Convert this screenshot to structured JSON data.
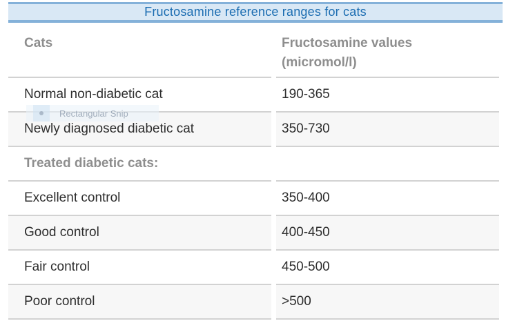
{
  "banner": {
    "title": "Fructosamine reference ranges for cats"
  },
  "table": {
    "header": {
      "col1": "Cats",
      "col2": "Fructosamine values (micromol/l)"
    },
    "rows": [
      {
        "label": "Normal non-diabetic cat",
        "value": "190-365"
      },
      {
        "label": "Newly diagnosed diabetic cat",
        "value": "350-730"
      },
      {
        "label": "Treated diabetic cats:",
        "value": ""
      },
      {
        "label": "Excellent control",
        "value": "350-400"
      },
      {
        "label": "Good control",
        "value": "400-450"
      },
      {
        "label": "Fair control",
        "value": "450-500"
      },
      {
        "label": "Poor control",
        "value": ">500"
      }
    ]
  },
  "snip_tool": {
    "menu_item": "Rectangular Snip"
  },
  "colors": {
    "banner_bg": "#d9e8f5",
    "banner_border": "#84b1d9",
    "title_text": "#1a6cb1",
    "muted_header_text": "#8e8e8e",
    "body_text": "#2d2d2d",
    "stripe_bg": "#f7f7f7",
    "rule": "#d2d2d2"
  }
}
